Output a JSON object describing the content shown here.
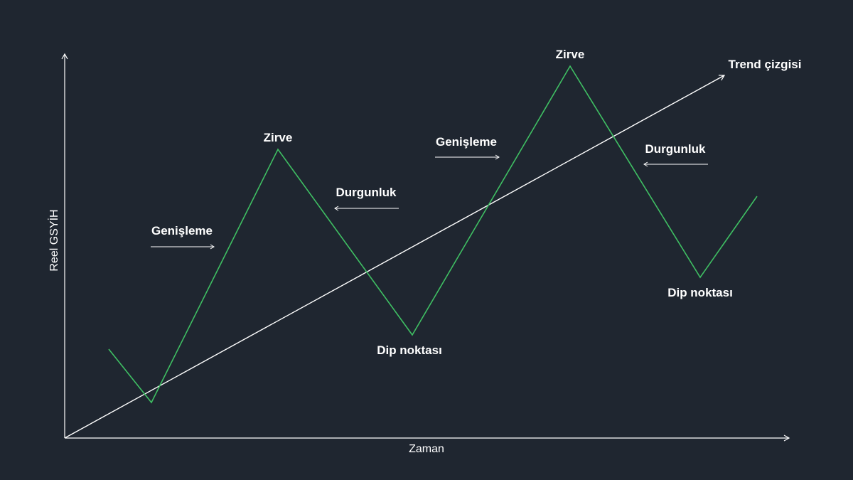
{
  "diagram": {
    "xlabel": "Zaman",
    "ylabel": "Reel GSYİH",
    "trend_label": "Trend çizgisi",
    "labels": {
      "expansion_1": "Genişleme",
      "peak_1": "Zirve",
      "recession_1": "Durgunluk",
      "trough_1": "Dip noktası",
      "expansion_2": "Genişleme",
      "peak_2": "Zirve",
      "recession_2": "Durgunluk",
      "trough_2": "Dip noktası"
    },
    "colors": {
      "background": "#1f2630",
      "cycle_line": "#3fbf63",
      "trend_line": "#ffffff",
      "axis": "#ffffff"
    }
  }
}
